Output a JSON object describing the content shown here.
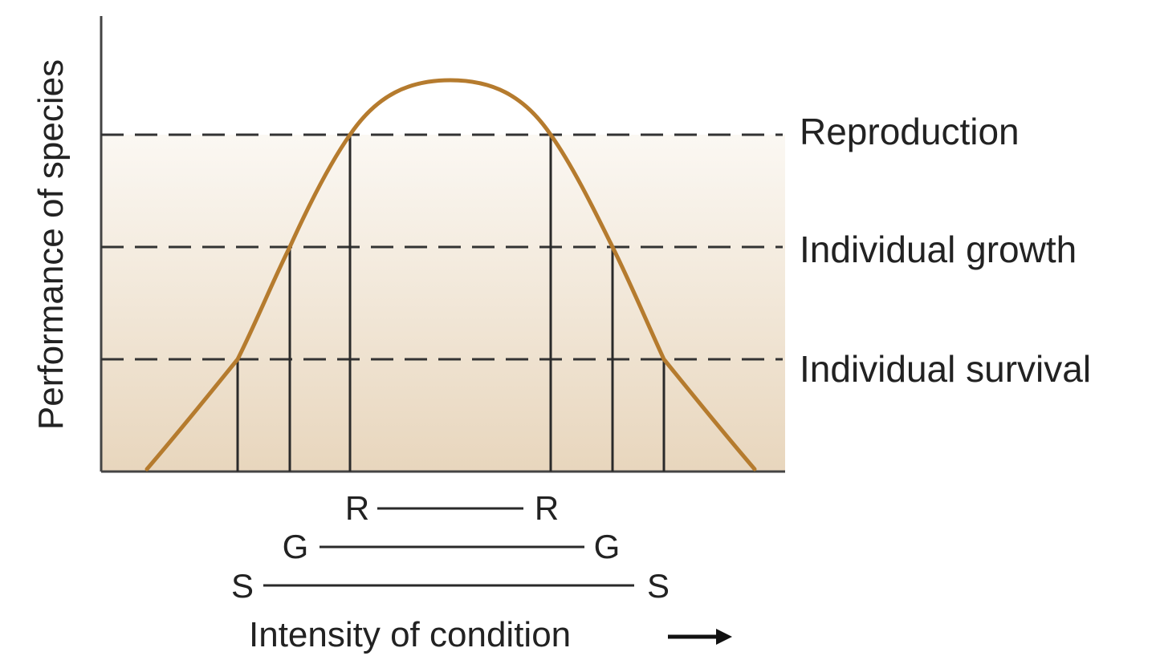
{
  "figure": {
    "y_axis_title": "Performance of species",
    "x_axis_title": "Intensity of condition",
    "levels": [
      {
        "id": "reproduction",
        "label": "Reproduction",
        "letter": "R"
      },
      {
        "id": "growth",
        "label": "Individual growth",
        "letter": "G"
      },
      {
        "id": "survival",
        "label": "Individual survival",
        "letter": "S"
      }
    ],
    "colors": {
      "curve": "#b57b2e",
      "shade_top": "#fbf8f3",
      "shade_bottom": "#e8d6bd",
      "lines": "#2a2a2a"
    }
  }
}
